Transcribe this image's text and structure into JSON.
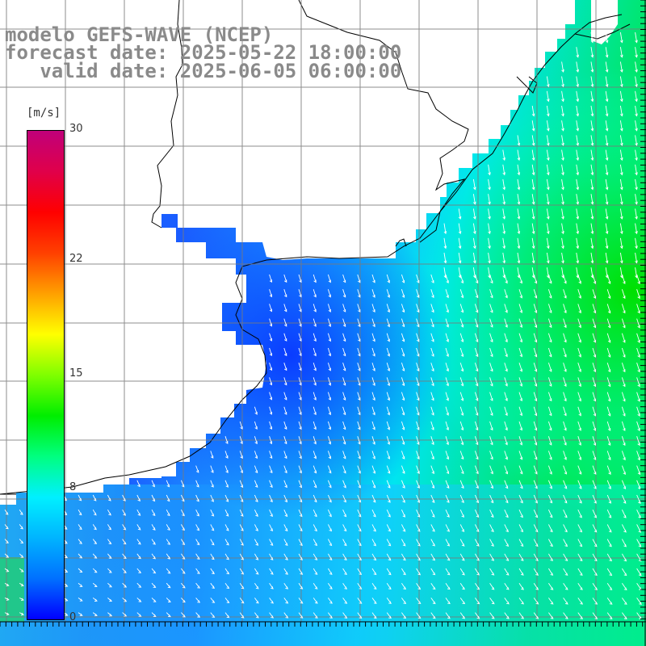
{
  "title": {
    "line1": "modelo GEFS-WAVE (NCEP)",
    "line2": "forecast date: 2025-05-22 18:00:00",
    "line3": "   valid date: 2025-06-05 06:00:00"
  },
  "colorbar": {
    "unit": "[m/s]",
    "ticks": [
      "30",
      "22",
      "15",
      "8",
      "0"
    ],
    "tick_values": [
      30,
      22,
      15,
      8,
      0
    ],
    "range": [
      0,
      30
    ],
    "colors": [
      "#0000ff",
      "#0070ff",
      "#00b4ff",
      "#00f0ff",
      "#00ff80",
      "#00ee00",
      "#7fff00",
      "#ffff00",
      "#ffa000",
      "#ff4000",
      "#ff0000",
      "#e0004a",
      "#c0007a"
    ]
  },
  "colors": {
    "land": "#ffffff",
    "coast": "#000000",
    "grid": "#808080",
    "arrow": "#ffffff",
    "title": "#8a8a8a"
  }
}
